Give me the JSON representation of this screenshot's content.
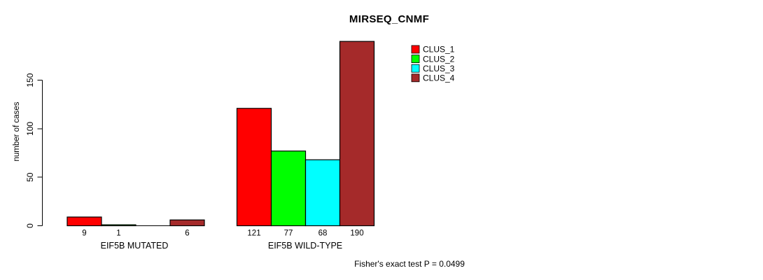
{
  "chart_data": {
    "type": "bar",
    "title": "MIRSEQ_CNMF",
    "ylabel": "number of cases",
    "xlabel": "",
    "yticks": [
      0,
      50,
      100,
      150
    ],
    "ylim": [
      0,
      190
    ],
    "grid": false,
    "legend_position": "top-right-inside",
    "bar_border_color": "#000000",
    "categories": [
      "EIF5B MUTATED",
      "EIF5B WILD-TYPE"
    ],
    "series": [
      {
        "name": "CLUS_1",
        "color": "#FF0000",
        "values": [
          9,
          121
        ]
      },
      {
        "name": "CLUS_2",
        "color": "#00FF00",
        "values": [
          1,
          77
        ]
      },
      {
        "name": "CLUS_3",
        "color": "#00FFFF",
        "values": [
          0,
          68
        ]
      },
      {
        "name": "CLUS_4",
        "color": "#A52A2A",
        "values": [
          6,
          190
        ]
      }
    ],
    "bar_value_labels": [
      [
        "9",
        "1",
        "",
        "6"
      ],
      [
        "121",
        "77",
        "68",
        "190"
      ]
    ],
    "caption": "Fisher's exact test P = 0.0499"
  }
}
